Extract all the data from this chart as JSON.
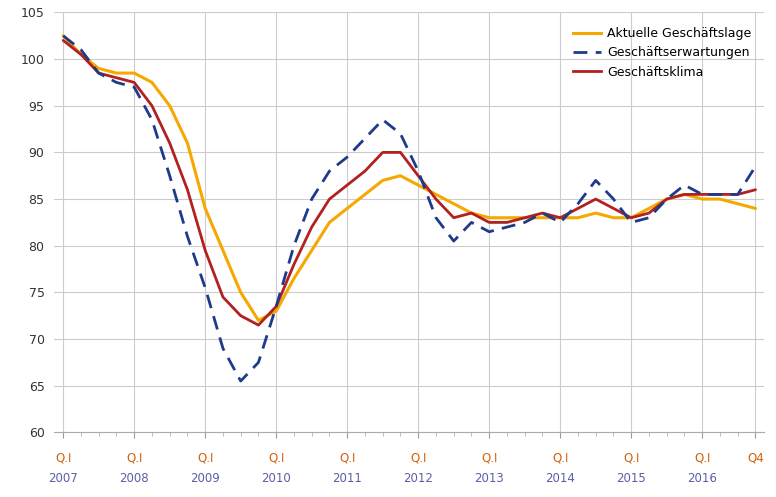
{
  "legend_labels": [
    "Aktuelle Geschäftslage",
    "Geschäftserwartungen",
    "Geschäftsklima"
  ],
  "colors": {
    "lage": "#F5A800",
    "erwartungen": "#1E3A8A",
    "klima": "#B22020"
  },
  "ylim": [
    60,
    105
  ],
  "yticks": [
    60,
    65,
    70,
    75,
    80,
    85,
    90,
    95,
    100,
    105
  ],
  "tick_color_q": "#D4600A",
  "tick_color_y": "#5B5EA6",
  "q_labels": [
    "Q.I",
    "Q.I",
    "Q.I",
    "Q.I",
    "Q.I",
    "Q.I",
    "Q.I",
    "Q.I",
    "Q.I",
    "Q.I",
    "Q4"
  ],
  "y_labels": [
    "2007",
    "2008",
    "2009",
    "2010",
    "2011",
    "2012",
    "2013",
    "2014",
    "2015",
    "2016",
    ""
  ],
  "year_positions": [
    0,
    4,
    8,
    12,
    16,
    20,
    24,
    28,
    32,
    36,
    39
  ],
  "lage": [
    102.5,
    100.5,
    99.0,
    98.5,
    98.5,
    97.5,
    95.0,
    91.0,
    84.0,
    79.5,
    75.0,
    72.0,
    73.0,
    76.5,
    79.5,
    82.5,
    84.0,
    85.5,
    87.0,
    87.5,
    86.5,
    85.5,
    84.5,
    83.5,
    83.0,
    83.0,
    83.0,
    83.0,
    83.0,
    83.0,
    83.5,
    83.0,
    83.0,
    84.0,
    85.0,
    85.5,
    85.0,
    85.0,
    84.5,
    84.0
  ],
  "erwartungen": [
    102.5,
    101.0,
    98.5,
    97.5,
    97.0,
    93.5,
    87.5,
    81.0,
    75.5,
    69.0,
    65.5,
    67.5,
    73.5,
    80.0,
    85.0,
    88.0,
    89.5,
    91.5,
    93.5,
    92.0,
    88.0,
    83.0,
    80.5,
    82.5,
    81.5,
    82.0,
    82.5,
    83.5,
    82.5,
    84.5,
    87.0,
    85.0,
    82.5,
    83.0,
    85.0,
    86.5,
    85.5,
    85.5,
    85.5,
    88.5
  ],
  "klima": [
    102.0,
    100.5,
    98.5,
    98.0,
    97.5,
    95.0,
    91.0,
    86.0,
    79.5,
    74.5,
    72.5,
    71.5,
    73.5,
    78.0,
    82.0,
    85.0,
    86.5,
    88.0,
    90.0,
    90.0,
    87.5,
    85.0,
    83.0,
    83.5,
    82.5,
    82.5,
    83.0,
    83.5,
    83.0,
    84.0,
    85.0,
    84.0,
    83.0,
    83.5,
    85.0,
    85.5,
    85.5,
    85.5,
    85.5,
    86.0
  ]
}
